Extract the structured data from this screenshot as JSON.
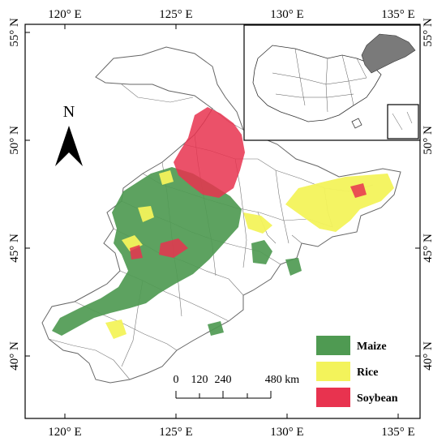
{
  "map": {
    "top_lon_labels": [
      "120° E",
      "125° E",
      "130° E",
      "135° E"
    ],
    "bottom_lon_labels": [
      "120° E",
      "125° E",
      "130° E",
      "135° E"
    ],
    "left_lat_labels": [
      "55° N",
      "50° N",
      "45° N",
      "40° N"
    ],
    "right_lat_labels": [
      "55° N",
      "50° N",
      "45° N",
      "40° N"
    ],
    "north_arrow_label": "N",
    "scale_bar": {
      "labels": [
        "0",
        "120",
        "240",
        "480 km"
      ],
      "unit": "km"
    },
    "legend": [
      {
        "label": "Maize",
        "color": "#4f9a52"
      },
      {
        "label": "Rice",
        "color": "#f3f35b"
      },
      {
        "label": "Soybean",
        "color": "#e8334f"
      }
    ],
    "inset_highlight_color": "#7a7a7a"
  }
}
